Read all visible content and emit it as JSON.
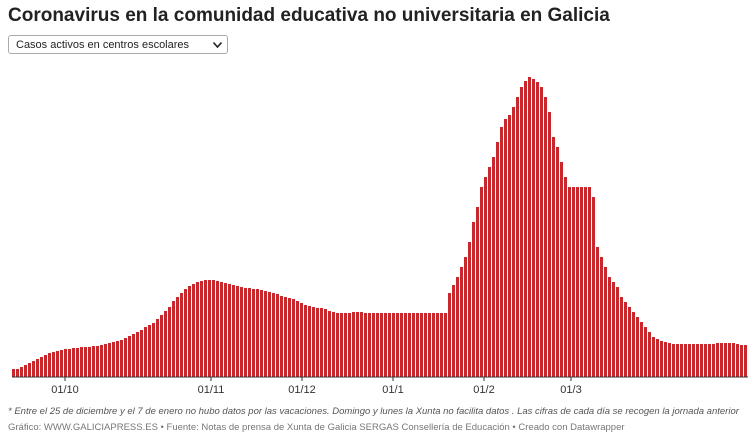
{
  "chart_data": {
    "type": "bar",
    "title": "Coronavirus en la comunidad educativa no universitaria en Galicia",
    "dropdown": "Casos activos en centros escolares",
    "note": "* Entre el 25 de diciembre y el 7 de enero no hubo datos por las vacaciones. Domingo y lunes la Xunta no facilita datos . Las cifras de cada día se recogen la jornada anterior",
    "source": "Gráfico: WWW.GALICIAPRESS.ES • Fuente: Notas de prensa de Xunta de Galicia SERGAS Consellería de Educación • Creado con Datawrapper",
    "color": "#c8272b",
    "ylim": [
      0,
      300
    ],
    "xlim": [
      0,
      184
    ],
    "xticks": [
      {
        "value": 13.25,
        "label": "01/10"
      },
      {
        "value": 49.75,
        "label": "01/11"
      },
      {
        "value": 72.5,
        "label": "01/12"
      },
      {
        "value": 95.25,
        "label": "01/1"
      },
      {
        "value": 118,
        "label": "01/2"
      },
      {
        "value": 139.75,
        "label": "01/3"
      }
    ],
    "values": [
      8,
      8,
      10,
      12,
      14,
      16,
      18,
      20,
      22,
      24,
      25,
      26,
      27,
      28,
      28,
      29,
      29,
      30,
      30,
      30,
      31,
      31,
      32,
      33,
      34,
      35,
      36,
      37,
      39,
      41,
      43,
      45,
      47,
      50,
      52,
      54,
      58,
      62,
      66,
      70,
      76,
      80,
      84,
      88,
      91,
      93,
      95,
      96,
      97,
      97,
      97,
      96,
      95,
      94,
      93,
      92,
      91,
      90,
      89,
      89,
      88,
      88,
      87,
      86,
      85,
      84,
      83,
      81,
      80,
      79,
      78,
      76,
      74,
      72,
      71,
      70,
      69,
      69,
      68,
      66,
      65,
      64,
      64,
      64,
      64,
      65,
      65,
      65,
      64,
      64,
      64,
      64,
      64,
      64,
      64,
      64,
      64,
      64,
      64,
      64,
      64,
      64,
      64,
      64,
      64,
      64,
      64,
      64,
      64,
      84,
      92,
      100,
      110,
      120,
      135,
      155,
      170,
      190,
      200,
      210,
      220,
      235,
      250,
      258,
      262,
      270,
      280,
      290,
      296,
      300,
      298,
      295,
      290,
      280,
      265,
      240,
      230,
      215,
      200,
      190,
      190,
      190,
      190,
      190,
      190,
      180,
      130,
      120,
      110,
      100,
      95,
      90,
      80,
      75,
      70,
      65,
      60,
      55,
      50,
      45,
      40,
      38,
      36,
      35,
      34,
      33,
      33,
      33,
      33,
      33,
      33,
      33,
      33,
      33,
      33,
      33,
      34,
      34,
      34,
      34,
      34,
      33,
      32,
      32
    ]
  }
}
